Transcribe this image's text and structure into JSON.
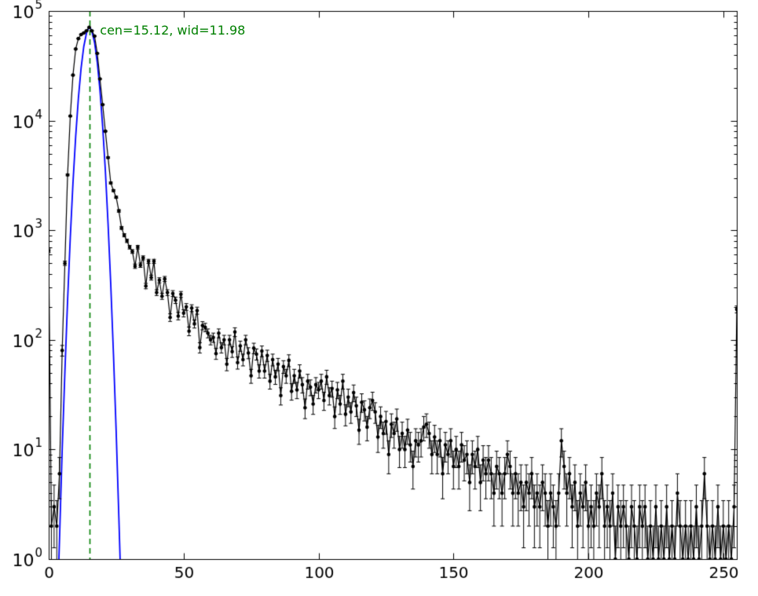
{
  "figure": {
    "background": "#ffffff"
  },
  "chart_data": {
    "type": "line",
    "title": "",
    "xlabel": "",
    "ylabel": "",
    "xlim": [
      0,
      255
    ],
    "ylog": true,
    "ylim": [
      1,
      100000
    ],
    "xticks": [
      0,
      50,
      100,
      150,
      200,
      250
    ],
    "ytick_exponents": [
      0,
      1,
      2,
      3,
      4,
      5
    ],
    "grid": false,
    "legend": "none",
    "vline": {
      "x": 15.12,
      "color": "#008000",
      "style": "dashed"
    },
    "annotation": {
      "text": "cen=15.12, wid=11.98",
      "color": "#008000",
      "x": 19,
      "y": 62000
    },
    "fit_params": {
      "cen": 15.12,
      "wid": 11.98
    },
    "series": [
      {
        "name": "histogram-with-errorbars",
        "color": "#000000",
        "marker": "circle",
        "error_model": "sqrt",
        "x_start": 0,
        "x_step": 1,
        "values": [
          650,
          2,
          3,
          2,
          6,
          80,
          500,
          3200,
          11000,
          26000,
          45000,
          56000,
          61000,
          63000,
          66000,
          71000,
          66000,
          59000,
          41000,
          24000,
          14000,
          8000,
          4600,
          2700,
          2300,
          2000,
          1500,
          1050,
          900,
          800,
          700,
          640,
          470,
          700,
          480,
          560,
          310,
          520,
          370,
          520,
          270,
          350,
          250,
          360,
          270,
          160,
          265,
          230,
          165,
          260,
          175,
          200,
          120,
          195,
          140,
          185,
          85,
          135,
          130,
          115,
          100,
          105,
          75,
          115,
          85,
          100,
          60,
          100,
          78,
          118,
          62,
          88,
          66,
          100,
          76,
          47,
          84,
          74,
          52,
          79,
          52,
          72,
          42,
          66,
          46,
          60,
          31,
          57,
          47,
          65,
          34,
          47,
          35,
          52,
          39,
          24,
          42,
          37,
          26,
          39,
          35,
          42,
          28,
          46,
          31,
          36,
          20,
          35,
          26,
          42,
          21,
          30,
          22,
          33,
          25,
          15,
          27,
          23,
          16,
          24,
          28,
          22,
          13,
          20,
          14,
          18,
          9,
          17,
          14,
          19,
          10,
          14,
          10,
          15,
          11,
          7,
          12,
          11,
          12,
          16,
          17,
          14,
          9,
          13,
          9,
          12,
          6,
          11,
          9,
          12,
          7,
          10,
          7,
          11,
          8,
          9,
          5,
          9,
          7,
          10,
          5,
          8,
          6,
          8,
          6,
          4,
          7,
          6,
          4,
          6,
          9,
          7,
          4,
          6,
          4,
          5,
          3,
          5,
          4,
          6,
          3,
          4,
          3,
          5,
          4,
          2,
          4,
          3,
          2,
          4,
          12,
          7,
          4,
          6,
          3,
          5,
          2,
          4,
          3,
          5,
          2,
          3,
          2,
          4,
          3,
          6,
          2,
          3,
          2,
          4,
          1,
          3,
          2,
          3,
          2,
          1,
          3,
          2,
          1,
          3,
          2,
          3,
          1,
          2,
          1,
          3,
          1,
          2,
          1,
          3,
          1,
          2,
          1,
          4,
          2,
          1,
          2,
          1,
          2,
          1,
          3,
          1,
          2,
          6,
          2,
          1,
          2,
          1,
          3,
          1,
          2,
          1,
          2,
          1,
          3,
          190
        ]
      },
      {
        "name": "gaussian-fit",
        "color": "#0000ff",
        "x": [
          3.78,
          4,
          5,
          6,
          7,
          8,
          9,
          10,
          11,
          12,
          13,
          14,
          14.5,
          15,
          15.12,
          15.5,
          16,
          17,
          18,
          19,
          20,
          21,
          22,
          23,
          24,
          25,
          26,
          26.46
        ],
        "y": [
          1,
          1.5,
          10,
          51,
          229,
          860,
          2714,
          7160,
          16000,
          30080,
          47400,
          62800,
          67700,
          69900,
          70000,
          69350,
          65450,
          51500,
          34070,
          18950,
          8840,
          3485,
          1146,
          319,
          74,
          14.7,
          2.4,
          1
        ]
      }
    ]
  }
}
